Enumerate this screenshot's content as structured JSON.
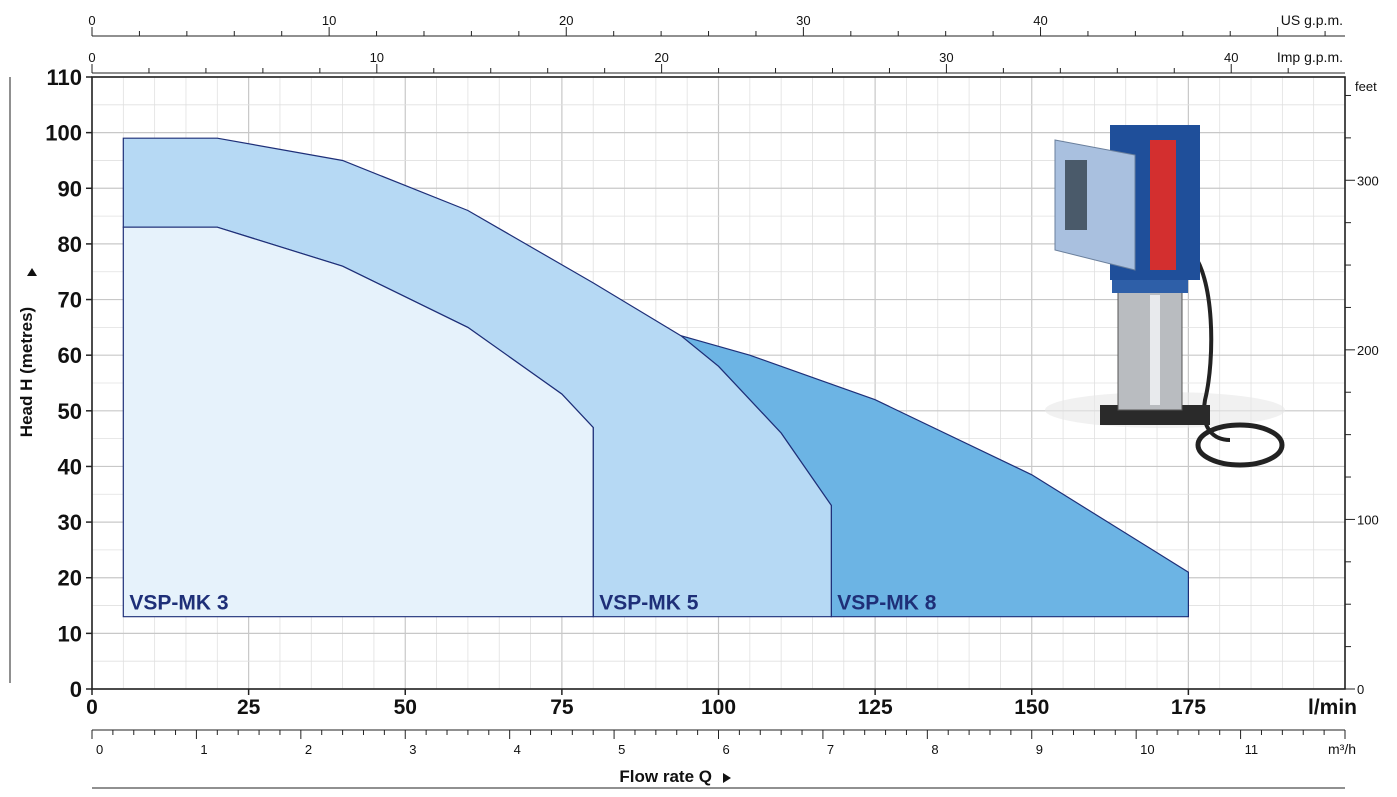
{
  "chart_data": {
    "type": "area",
    "xlabel": "Flow rate  Q",
    "ylabel": "Head  H  (metres)",
    "x_unit": "l/min",
    "xlim": [
      0,
      200
    ],
    "ylim": [
      0,
      110
    ],
    "x_ticks": [
      0,
      25,
      50,
      75,
      100,
      125,
      150,
      175
    ],
    "y_ticks": [
      0,
      10,
      20,
      30,
      40,
      50,
      60,
      70,
      80,
      90,
      100,
      110
    ],
    "grid": true,
    "secondary_axes": {
      "us_gpm": {
        "unit": "US g.p.m.",
        "ticks": [
          0,
          10,
          20,
          30,
          40
        ]
      },
      "imp_gpm": {
        "unit": "Imp g.p.m.",
        "ticks": [
          0,
          10,
          20,
          30,
          40
        ]
      },
      "m3h": {
        "unit": "m³/h",
        "ticks": [
          0,
          1,
          2,
          3,
          4,
          5,
          6,
          7,
          8,
          9,
          10,
          11
        ]
      },
      "feet": {
        "unit": "feet",
        "ticks": [
          0,
          100,
          200,
          300
        ]
      }
    },
    "series": [
      {
        "name": "VSP-MK 8",
        "color": "#6cb4e4",
        "points": [
          [
            94,
            63.5
          ],
          [
            105,
            60
          ],
          [
            125,
            52
          ],
          [
            150,
            38.5
          ],
          [
            175,
            21
          ],
          [
            175,
            13
          ],
          [
            118,
            13
          ],
          [
            118,
            33
          ],
          [
            110,
            46
          ],
          [
            100,
            58
          ],
          [
            94,
            63.5
          ]
        ]
      },
      {
        "name": "VSP-MK 5",
        "color": "#b6d9f4",
        "points": [
          [
            5,
            99
          ],
          [
            20,
            99
          ],
          [
            40,
            95
          ],
          [
            60,
            86
          ],
          [
            80,
            73
          ],
          [
            94,
            63.5
          ],
          [
            100,
            58
          ],
          [
            110,
            46
          ],
          [
            118,
            33
          ],
          [
            118,
            13
          ],
          [
            80,
            13
          ],
          [
            80,
            47
          ],
          [
            75,
            53
          ],
          [
            60,
            65
          ],
          [
            40,
            76
          ],
          [
            20,
            83
          ],
          [
            5,
            83
          ],
          [
            5,
            99
          ]
        ]
      },
      {
        "name": "VSP-MK 3",
        "color": "#e6f2fb",
        "points": [
          [
            5,
            83
          ],
          [
            20,
            83
          ],
          [
            40,
            76
          ],
          [
            60,
            65
          ],
          [
            75,
            53
          ],
          [
            80,
            47
          ],
          [
            80,
            13
          ],
          [
            5,
            13
          ],
          [
            5,
            83
          ]
        ]
      }
    ]
  },
  "product_image": {
    "alt": "pump"
  }
}
